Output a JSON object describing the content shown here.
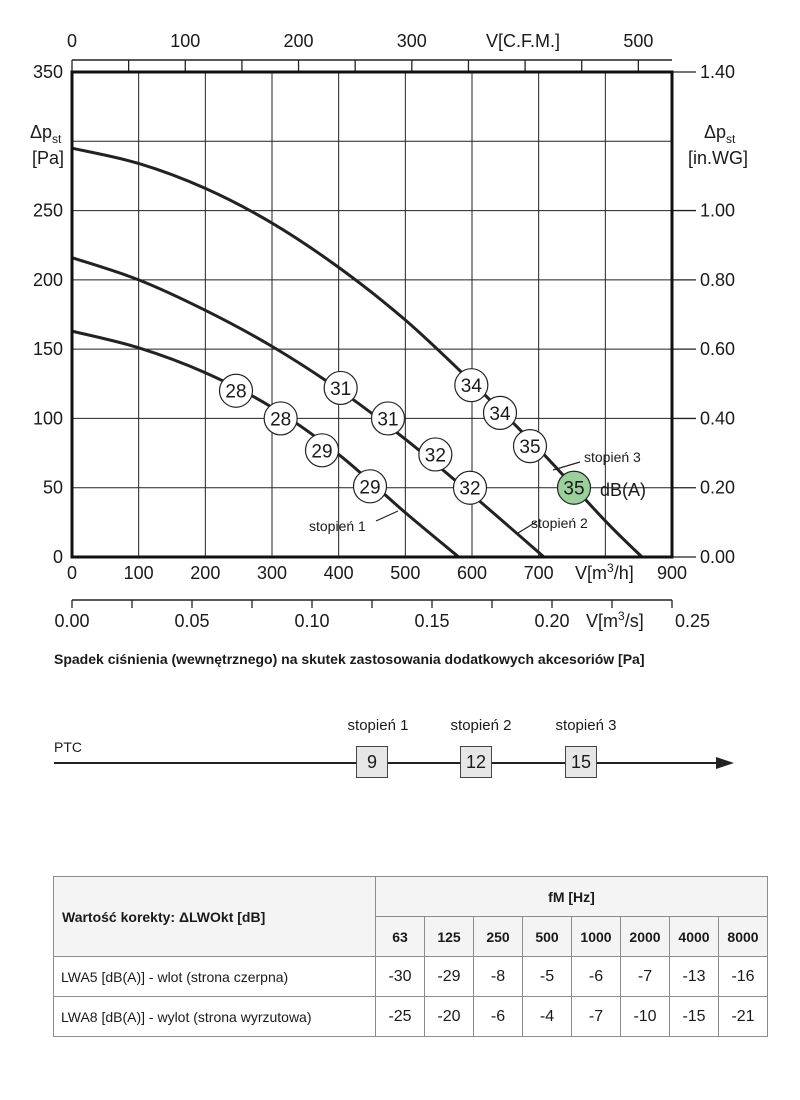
{
  "chart_data": {
    "type": "line",
    "axes": {
      "x_bottom": {
        "label": "V[m3/h]",
        "min": 0,
        "max": 900,
        "ticks": [
          0,
          100,
          200,
          300,
          400,
          500,
          600,
          700,
          900
        ]
      },
      "x_top": {
        "label": "V[C.F.M.]",
        "min": 0,
        "max": 529.7,
        "ticks": [
          0,
          100,
          200,
          300,
          500
        ]
      },
      "x_lower": {
        "label": "V[m3/s]",
        "min": 0,
        "max": 0.25,
        "ticks": [
          "0.00",
          "0.05",
          "0.10",
          "0.15",
          "0.20",
          "0.25"
        ]
      },
      "y_left": {
        "label_main": "Δp",
        "label_sub": "st",
        "unit": "[Pa]",
        "min": 0,
        "max": 350,
        "ticks": [
          0,
          50,
          100,
          150,
          200,
          250,
          350
        ]
      },
      "y_right": {
        "label_main": "Δp",
        "label_sub": "st",
        "unit": "[in.WG]",
        "min": 0,
        "max": 1.4,
        "ticks": [
          "0.00",
          "0.20",
          "0.40",
          "0.60",
          "0.80",
          "1.00",
          "1.40"
        ]
      },
      "grid": true
    },
    "series": [
      {
        "name": "stopień 1",
        "x": [
          0,
          100,
          200,
          300,
          400,
          500,
          580
        ],
        "y": [
          163,
          151,
          133,
          108,
          74,
          32,
          0
        ]
      },
      {
        "name": "stopień 2",
        "x": [
          0,
          100,
          200,
          300,
          400,
          500,
          600,
          708
        ],
        "y": [
          216,
          200,
          178,
          152,
          121,
          85,
          45,
          0
        ]
      },
      {
        "name": "stopień 3",
        "x": [
          0,
          100,
          200,
          300,
          400,
          500,
          600,
          700,
          800,
          855
        ],
        "y": [
          295,
          284,
          266,
          241,
          209,
          171,
          126,
          78,
          26,
          0
        ]
      }
    ],
    "sound_markers": [
      {
        "x": 246,
        "y": 120,
        "label": "28",
        "highlight": false
      },
      {
        "x": 313,
        "y": 100,
        "label": "28",
        "highlight": false
      },
      {
        "x": 375,
        "y": 77,
        "label": "29",
        "highlight": false
      },
      {
        "x": 447,
        "y": 51,
        "label": "29",
        "highlight": false
      },
      {
        "x": 403,
        "y": 122,
        "label": "31",
        "highlight": false
      },
      {
        "x": 474,
        "y": 100,
        "label": "31",
        "highlight": false
      },
      {
        "x": 545,
        "y": 74,
        "label": "32",
        "highlight": false
      },
      {
        "x": 597,
        "y": 50,
        "label": "32",
        "highlight": false
      },
      {
        "x": 599,
        "y": 124,
        "label": "34",
        "highlight": false
      },
      {
        "x": 642,
        "y": 104,
        "label": "34",
        "highlight": false
      },
      {
        "x": 687,
        "y": 80,
        "label": "35",
        "highlight": false
      },
      {
        "x": 753,
        "y": 50,
        "label": "35",
        "highlight": true
      }
    ],
    "annotations": {
      "unit_label": "dB(A)",
      "stopien1": "stopień 1",
      "stopien2": "stopień 2",
      "stopien3": "stopień 3"
    },
    "colors": {
      "curve": "#222222",
      "highlight": "#9bcf9b",
      "grid": "#222222"
    }
  },
  "pressure_change": {
    "title": "Spadek ciśnienia (wewnętrznego) na skutek zastosowania dodatkowych akcesoriów [Pa]",
    "accessory": "PTC",
    "steps": [
      {
        "label": "stopień 1",
        "value": "9"
      },
      {
        "label": "stopień 2",
        "value": "12"
      },
      {
        "label": "stopień 3",
        "value": "15"
      }
    ]
  },
  "correction_table": {
    "header": "Wartość korekty:  ΔLWOkt [dB]",
    "freq_header": "fM [Hz]",
    "frequencies": [
      "63",
      "125",
      "250",
      "500",
      "1000",
      "2000",
      "4000",
      "8000"
    ],
    "rows": [
      {
        "label": "LWA5 [dB(A)] - wlot (strona czerpna)",
        "values": [
          "-30",
          "-29",
          "-8",
          "-5",
          "-6",
          "-7",
          "-13",
          "-16"
        ]
      },
      {
        "label": "LWA8 [dB(A)] - wylot (strona wyrzutowa)",
        "values": [
          "-25",
          "-20",
          "-6",
          "-4",
          "-7",
          "-10",
          "-15",
          "-21"
        ]
      }
    ]
  }
}
